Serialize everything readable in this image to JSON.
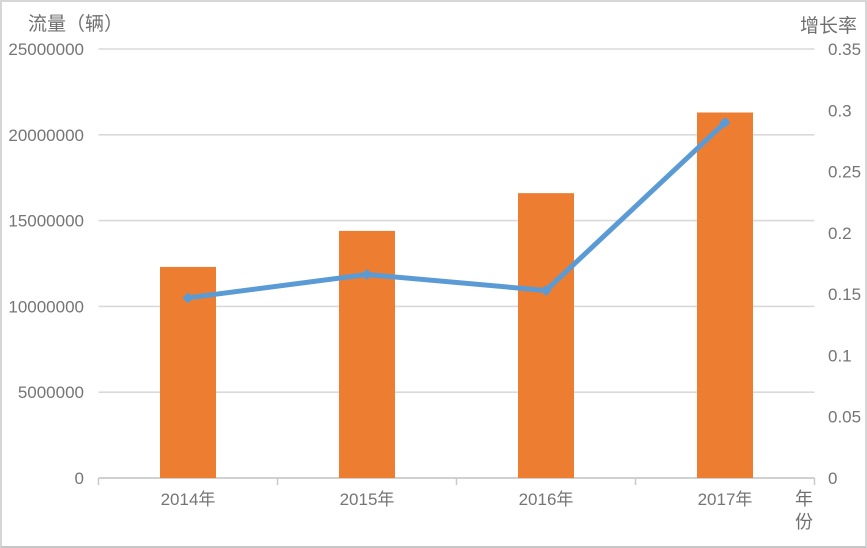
{
  "chart": {
    "left_axis_title": "流量（辆）",
    "right_axis_title": "增长率",
    "x_axis_title": "年份"
  },
  "chart_data": {
    "type": "bar+line combo",
    "categories": [
      "2014年",
      "2015年",
      "2016年",
      "2017年"
    ],
    "series": [
      {
        "name": "流量（辆）",
        "type": "bar",
        "axis": "left",
        "values": [
          12300000,
          14400000,
          16600000,
          21300000
        ],
        "color": "#ED7D31"
      },
      {
        "name": "增长率",
        "type": "line",
        "axis": "right",
        "values": [
          0.147,
          0.166,
          0.153,
          0.29
        ],
        "color": "#5B9BD5"
      }
    ],
    "left_axis": {
      "title": "流量（辆）",
      "min": 0,
      "max": 25000000,
      "step": 5000000,
      "tick_labels": [
        "0",
        "5000000",
        "10000000",
        "15000000",
        "20000000",
        "25000000"
      ]
    },
    "right_axis": {
      "title": "增长率",
      "min": 0,
      "max": 0.35,
      "step": 0.05,
      "tick_labels": [
        "0",
        "0.05",
        "0.1",
        "0.15",
        "0.2",
        "0.25",
        "0.3",
        "0.35"
      ]
    },
    "x_axis": {
      "title": "年份"
    },
    "grid": "horizontal gridlines at left-axis intervals",
    "legend": "none",
    "colors": {
      "bar": "#ED7D31",
      "line": "#5B9BD5",
      "gridline": "#D9D9D9",
      "axis_line": "#C9C9C9",
      "tick_text": "#757575"
    }
  }
}
